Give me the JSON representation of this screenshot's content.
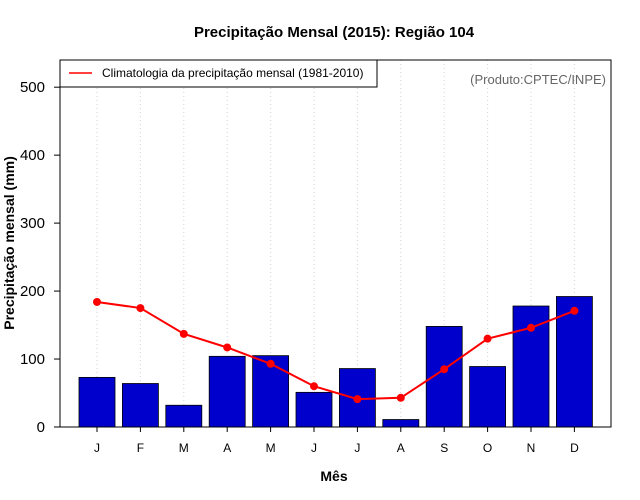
{
  "chart_data": {
    "type": "bar",
    "title": "Precipitação Mensal (2015): Região 104",
    "xlabel": "Mês",
    "ylabel": "Precipitação mensal (mm)",
    "categories": [
      "J",
      "F",
      "M",
      "A",
      "M",
      "J",
      "J",
      "A",
      "S",
      "O",
      "N",
      "D"
    ],
    "ylim": [
      0,
      540
    ],
    "yticks": [
      0,
      100,
      200,
      300,
      400,
      500
    ],
    "grid": "vertical dotted",
    "series": [
      {
        "name": "Precipitação mensal 2015",
        "kind": "bar",
        "color": "#0000CC",
        "values": [
          73,
          64,
          32,
          104,
          105,
          51,
          86,
          11,
          148,
          89,
          178,
          192
        ]
      },
      {
        "name": "Climatologia da precipitação mensal (1981-2010)",
        "kind": "line",
        "color": "#FF0000",
        "values": [
          184,
          175,
          137,
          117,
          93,
          60,
          41,
          43,
          85,
          130,
          146,
          171
        ]
      }
    ],
    "legend": {
      "position": "top-left",
      "entries": [
        "Climatologia da precipitação mensal (1981-2010)"
      ]
    },
    "annotation": "(Produto:CPTEC/INPE)"
  }
}
